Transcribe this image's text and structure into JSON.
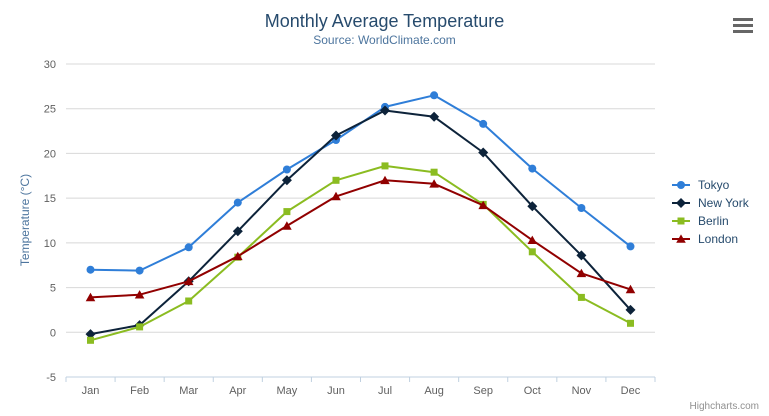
{
  "chart_data": {
    "type": "line",
    "title": "Monthly Average Temperature",
    "subtitle": "Source: WorldClimate.com",
    "xlabel": "",
    "ylabel": "Temperature (°C)",
    "ylim": [
      -5,
      30
    ],
    "ytick_interval": 5,
    "grid": true,
    "legend_position": "right",
    "categories": [
      "Jan",
      "Feb",
      "Mar",
      "Apr",
      "May",
      "Jun",
      "Jul",
      "Aug",
      "Sep",
      "Oct",
      "Nov",
      "Dec"
    ],
    "series": [
      {
        "name": "Tokyo",
        "color": "#2f7ed8",
        "marker": "circle",
        "values": [
          7.0,
          6.9,
          9.5,
          14.5,
          18.2,
          21.5,
          25.2,
          26.5,
          23.3,
          18.3,
          13.9,
          9.6
        ]
      },
      {
        "name": "New York",
        "color": "#0d233a",
        "marker": "diamond",
        "values": [
          -0.2,
          0.8,
          5.7,
          11.3,
          17.0,
          22.0,
          24.8,
          24.1,
          20.1,
          14.1,
          8.6,
          2.5
        ]
      },
      {
        "name": "Berlin",
        "color": "#8bbc21",
        "marker": "square",
        "values": [
          -0.9,
          0.6,
          3.5,
          8.4,
          13.5,
          17.0,
          18.6,
          17.9,
          14.3,
          9.0,
          3.9,
          1.0
        ]
      },
      {
        "name": "London",
        "color": "#910000",
        "marker": "triangle",
        "values": [
          3.9,
          4.2,
          5.7,
          8.5,
          11.9,
          15.2,
          17.0,
          16.6,
          14.2,
          10.3,
          6.6,
          4.8
        ]
      }
    ],
    "credits": "Highcharts.com",
    "colors": {
      "title": "#274b6d",
      "subtitle": "#4d759e",
      "axis_title": "#4d759e",
      "axis_label": "#606060",
      "grid": "#d8d8d8",
      "axis_line": "#c0d0e0",
      "legend_text": "#274b6d",
      "credits": "#909090",
      "menu_icon": "#666666"
    }
  }
}
